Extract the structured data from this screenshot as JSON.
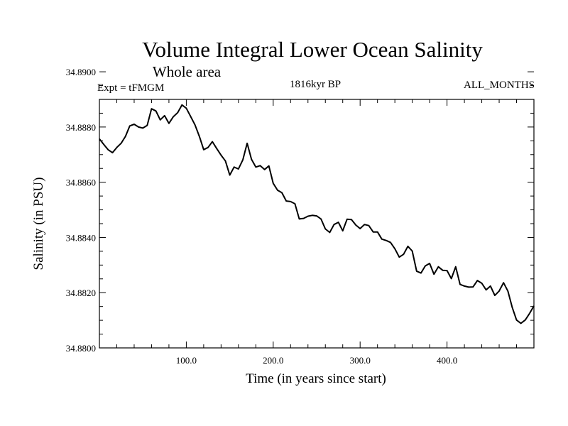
{
  "chart_data": {
    "type": "line",
    "title": "Volume Integral Lower Ocean Salinity",
    "subtitle": "Whole area",
    "expt_label": "Expt = tFMGM",
    "period_label": "1816kyr BP",
    "months_label": "ALL_MONTHS",
    "xlabel": "Time (in years since start)",
    "ylabel": "Salinity (in PSU)",
    "xlim": [
      0,
      500
    ],
    "ylim": [
      34.88,
      34.889
    ],
    "x_ticks": [
      {
        "value": 100,
        "label": "100.0"
      },
      {
        "value": 200,
        "label": "200.0"
      },
      {
        "value": 300,
        "label": "300.0"
      },
      {
        "value": 400,
        "label": "400.0"
      }
    ],
    "y_ticks": [
      {
        "value": 34.88,
        "label": "34.8800"
      },
      {
        "value": 34.882,
        "label": "34.8820"
      },
      {
        "value": 34.884,
        "label": "34.8840"
      },
      {
        "value": 34.886,
        "label": "34.8860"
      },
      {
        "value": 34.888,
        "label": "34.8880"
      },
      {
        "value": 34.89,
        "label": "34.8900"
      }
    ],
    "series": [
      {
        "name": "Salinity",
        "x": [
          0,
          5,
          10,
          15,
          20,
          25,
          30,
          35,
          40,
          45,
          50,
          55,
          60,
          65,
          70,
          75,
          80,
          85,
          90,
          95,
          100,
          105,
          110,
          115,
          120,
          125,
          130,
          135,
          140,
          145,
          150,
          155,
          160,
          165,
          170,
          175,
          180,
          185,
          190,
          195,
          200,
          205,
          210,
          215,
          220,
          225,
          230,
          235,
          240,
          245,
          250,
          255,
          260,
          265,
          270,
          275,
          280,
          285,
          290,
          295,
          300,
          305,
          310,
          315,
          320,
          325,
          330,
          335,
          340,
          345,
          350,
          355,
          360,
          365,
          370,
          375,
          380,
          385,
          390,
          395,
          400,
          405,
          410,
          415,
          420,
          425,
          430,
          435,
          440,
          445,
          450,
          455,
          460,
          465,
          470,
          475,
          480,
          485,
          490,
          495,
          500
        ],
        "values": [
          34.88757,
          34.88737,
          34.88718,
          34.88707,
          34.88726,
          34.88741,
          34.88766,
          34.88804,
          34.8881,
          34.888,
          34.88796,
          34.88806,
          34.88866,
          34.88858,
          34.88826,
          34.88841,
          34.88813,
          34.88837,
          34.88852,
          34.8888,
          34.88868,
          34.88838,
          34.88808,
          34.88766,
          34.88718,
          34.88726,
          34.88747,
          34.88722,
          34.88698,
          34.88677,
          34.88626,
          34.88655,
          34.88648,
          34.88681,
          34.88741,
          34.88683,
          34.88655,
          34.8866,
          34.88646,
          34.88659,
          34.88596,
          34.88571,
          34.88562,
          34.88532,
          34.8853,
          34.88522,
          34.88467,
          34.88469,
          34.88477,
          34.8848,
          34.88478,
          34.88467,
          34.88431,
          34.88418,
          34.88447,
          34.88455,
          34.88424,
          34.88466,
          34.88465,
          34.88445,
          34.88432,
          34.88447,
          34.88443,
          34.8842,
          34.8842,
          34.88394,
          34.88389,
          34.88382,
          34.88359,
          34.88329,
          34.88339,
          34.88368,
          34.88351,
          34.88278,
          34.88271,
          34.88297,
          34.88306,
          34.88267,
          34.88294,
          34.88281,
          34.8828,
          34.88251,
          34.88294,
          34.8823,
          34.88224,
          34.8822,
          34.88221,
          34.88244,
          34.88234,
          34.8821,
          34.88224,
          34.8819,
          34.88206,
          34.88236,
          34.88206,
          34.88147,
          34.88101,
          34.88089,
          34.88101,
          34.88125,
          34.88152
        ]
      }
    ]
  }
}
